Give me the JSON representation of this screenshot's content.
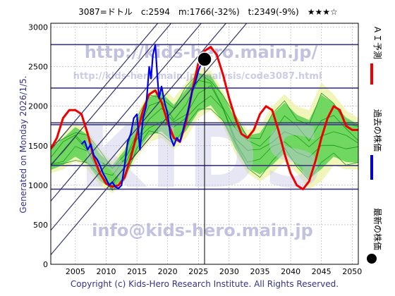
{
  "header": {
    "title": "3087=ドトル　c:2594　m:1766(-32%)　t:2349(-9%)　★★★☆"
  },
  "side_left_text": "Generated on Monday 2026/1/5.",
  "watermarks": {
    "top": "http://kids-hero.main.jp/",
    "url": "http://kids-hero.main.jp/analysis/code3087.html",
    "bottom": "info@kids-hero.main.jp",
    "big": "KIDS"
  },
  "footer": "Copyright (c) Kids-Hero Research Institute. All Rights Reserved.",
  "legend": {
    "ai_forecast": "ＡＩ予測",
    "past_price": "過去の株価",
    "latest_price": "最新の株価"
  },
  "colors": {
    "ai_forecast": "#ee0000",
    "past_price": "#0000ee",
    "latest_price": "#000000",
    "band_fill": "#44cc44",
    "band_fill_light": "#eef2a8",
    "band_line": "#1a9a1a",
    "channel": "#333366",
    "hline": "#3a3a7a",
    "grid": "#999999"
  },
  "chart_data": {
    "type": "line",
    "title": "3087=ドトル　c:2594　m:1766(-32%)　t:2349(-9%)　★★★☆",
    "xlim": [
      2001,
      2051
    ],
    "ylim": [
      0,
      3050
    ],
    "xticks": [
      2005,
      2010,
      2015,
      2020,
      2025,
      2030,
      2035,
      2040,
      2045,
      2050
    ],
    "yticks": [
      0,
      500,
      1000,
      1500,
      2000,
      2500,
      3000
    ],
    "grid": true,
    "latest": {
      "x": 2026.0,
      "y": 2594
    },
    "reference_lines": [
      2780,
      2230,
      1790,
      1766,
      1250,
      950
    ],
    "channel_lines": [
      {
        "x0": 2001,
        "y0": 1450,
        "x1": 2051,
        "y1": 6050
      },
      {
        "x0": 2001,
        "y0": 1250,
        "x1": 2051,
        "y1": 5850
      },
      {
        "x0": 2001,
        "y0": 800,
        "x1": 2051,
        "y1": 5400
      },
      {
        "x0": 2001,
        "y0": 430,
        "x1": 2051,
        "y1": 5030
      },
      {
        "x0": 2001,
        "y0": 120,
        "x1": 2051,
        "y1": 4720
      }
    ],
    "ai_forecast": {
      "x": [
        2001,
        2002,
        2003,
        2004,
        2005,
        2006,
        2007,
        2008,
        2009,
        2010,
        2011,
        2012,
        2013,
        2014,
        2015,
        2016,
        2017,
        2018,
        2019,
        2020,
        2021,
        2022,
        2023,
        2024,
        2025,
        2026,
        2027,
        2028,
        2029,
        2030,
        2031,
        2032,
        2033,
        2034,
        2035,
        2036,
        2037,
        2038,
        2039,
        2040,
        2041,
        2042,
        2043,
        2044,
        2045,
        2046,
        2047,
        2048,
        2049,
        2050,
        2051
      ],
      "y": [
        1460,
        1600,
        1850,
        1950,
        1950,
        1900,
        1650,
        1350,
        1150,
        1020,
        980,
        1000,
        1100,
        1350,
        1650,
        1950,
        2150,
        2200,
        2050,
        1800,
        1600,
        1550,
        1800,
        2200,
        2550,
        2700,
        2750,
        2650,
        2400,
        2100,
        1850,
        1650,
        1600,
        1700,
        1900,
        2000,
        1950,
        1700,
        1400,
        1150,
        1000,
        950,
        1050,
        1300,
        1600,
        1850,
        2000,
        1950,
        1750,
        1700,
        1700
      ]
    },
    "past_price": {
      "x": [
        2006.0,
        2006.5,
        2007.0,
        2007.5,
        2008.0,
        2008.5,
        2009.0,
        2009.5,
        2010.0,
        2010.5,
        2011.0,
        2011.5,
        2012.0,
        2012.5,
        2013.0,
        2013.5,
        2014.0,
        2014.5,
        2015.0,
        2015.5,
        2016.0,
        2016.5,
        2017.0,
        2017.3,
        2017.6,
        2018.0,
        2018.3,
        2018.6,
        2019.0,
        2019.5,
        2020.0,
        2020.5,
        2021.0,
        2021.5,
        2022.0,
        2022.5,
        2023.0,
        2023.5,
        2024.0,
        2024.5,
        2025.0,
        2025.5,
        2026.0
      ],
      "y": [
        1520,
        1560,
        1450,
        1520,
        1380,
        1330,
        1250,
        1150,
        1080,
        1000,
        1040,
        980,
        960,
        1000,
        1250,
        1550,
        1650,
        1850,
        1900,
        1450,
        1850,
        2000,
        2500,
        2350,
        2650,
        2780,
        2400,
        2100,
        2250,
        2050,
        1900,
        1600,
        1500,
        1600,
        1550,
        1700,
        1850,
        2000,
        2200,
        2300,
        2450,
        2550,
        2594
      ]
    },
    "band_upper": {
      "x": [
        2001,
        2003,
        2005,
        2007,
        2009,
        2011,
        2013,
        2015,
        2017,
        2019,
        2021,
        2023,
        2025,
        2027,
        2029,
        2031,
        2033,
        2035,
        2037,
        2039,
        2041,
        2043,
        2045,
        2047,
        2049,
        2051
      ],
      "y": [
        1500,
        1650,
        1800,
        1700,
        1450,
        1300,
        1500,
        1900,
        2200,
        2250,
        2100,
        2300,
        2500,
        2450,
        2200,
        1900,
        1700,
        1750,
        2000,
        2150,
        2000,
        1950,
        2300,
        2150,
        1950,
        1850
      ]
    },
    "band_lower": {
      "x": [
        2001,
        2003,
        2005,
        2007,
        2009,
        2011,
        2013,
        2015,
        2017,
        2019,
        2021,
        2023,
        2025,
        2027,
        2029,
        2031,
        2033,
        2035,
        2037,
        2039,
        2041,
        2043,
        2045,
        2047,
        2049,
        2051
      ],
      "y": [
        1150,
        1200,
        1300,
        1200,
        1000,
        900,
        1050,
        1350,
        1550,
        1600,
        1450,
        1600,
        1850,
        1950,
        1750,
        1400,
        1150,
        1050,
        1150,
        1300,
        1150,
        950,
        1050,
        1250,
        1200,
        1200
      ]
    }
  }
}
